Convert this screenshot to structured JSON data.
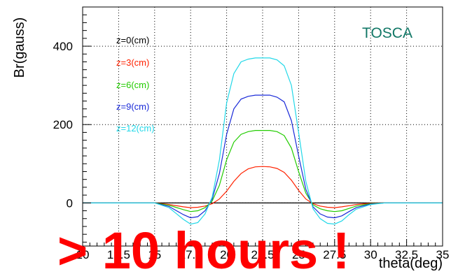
{
  "chart_data": {
    "type": "line",
    "title": "",
    "xlabel": "theta(deg)",
    "ylabel": "Br(gauss)",
    "xlim": [
      10,
      35
    ],
    "ylim": [
      -110,
      500
    ],
    "grid": true,
    "x_ticks": [
      10,
      12.5,
      15,
      17.5,
      20,
      22.5,
      25,
      27.5,
      30,
      32.5,
      35
    ],
    "x_tick_labels": [
      "10",
      "12.5",
      "15",
      "17.5",
      "20",
      "22.5",
      "25",
      "27.5",
      "30",
      "32.5",
      "35"
    ],
    "y_ticks": [
      0,
      200,
      400
    ],
    "y_tick_labels": [
      "0",
      "200",
      "400"
    ],
    "annotation": "TOSCA",
    "annotation_color": "#117766",
    "overlay_text": "> 10 hours !",
    "overlay_color": "#ff0000",
    "legend_position": "upper-left",
    "series": [
      {
        "name": "z=0(cm)",
        "color": "#000000",
        "x": [
          10,
          15,
          35
        ],
        "y": [
          0,
          0,
          0
        ]
      },
      {
        "name": "z=3(cm)",
        "color": "#ff2200",
        "x": [
          10,
          15,
          16,
          17,
          17.5,
          18,
          18.5,
          19,
          19.5,
          20,
          20.5,
          21,
          21.5,
          22,
          22.5,
          23,
          23.5,
          24,
          24.5,
          25,
          25.5,
          26,
          26.5,
          27,
          27.5,
          28,
          28.5,
          29,
          30,
          31,
          35
        ],
        "y": [
          0,
          0,
          -4,
          -10,
          -12,
          -11,
          -8,
          -2,
          10,
          30,
          55,
          75,
          87,
          92,
          93,
          92,
          88,
          78,
          58,
          32,
          10,
          -2,
          -8,
          -11,
          -12,
          -10,
          -7,
          -4,
          -1,
          0,
          0
        ]
      },
      {
        "name": "z=6(cm)",
        "color": "#22cc00",
        "x": [
          10,
          15,
          16,
          17,
          17.5,
          18,
          18.5,
          19,
          19.5,
          20,
          20.5,
          21,
          21.5,
          22,
          22.5,
          23,
          23.5,
          24,
          24.5,
          25,
          25.5,
          26,
          26.5,
          27,
          27.5,
          28,
          28.5,
          29,
          30,
          31,
          35
        ],
        "y": [
          0,
          0,
          -6,
          -17,
          -22,
          -20,
          -12,
          5,
          45,
          110,
          155,
          175,
          182,
          185,
          185,
          185,
          182,
          172,
          140,
          80,
          25,
          -5,
          -15,
          -20,
          -22,
          -20,
          -14,
          -8,
          -2,
          0,
          0
        ]
      },
      {
        "name": "z=9(cm)",
        "color": "#1a2ad8",
        "x": [
          10,
          15,
          16,
          17,
          17.5,
          18,
          18.5,
          19,
          19.5,
          20,
          20.5,
          21,
          21.5,
          22,
          22.5,
          23,
          23.5,
          24,
          24.5,
          25,
          25.5,
          26,
          26.5,
          27,
          27.5,
          28,
          28.5,
          29,
          30,
          31,
          35
        ],
        "y": [
          0,
          0,
          -9,
          -30,
          -38,
          -35,
          -20,
          10,
          75,
          175,
          240,
          265,
          272,
          275,
          275,
          275,
          270,
          258,
          210,
          120,
          35,
          -10,
          -28,
          -36,
          -38,
          -33,
          -22,
          -12,
          -3,
          0,
          0
        ]
      },
      {
        "name": "z=12(cm)",
        "color": "#22d8e8",
        "x": [
          10,
          15,
          16,
          17,
          17.5,
          18,
          18.5,
          19,
          19.5,
          20,
          20.5,
          21,
          21.5,
          22,
          22.5,
          23,
          23.5,
          24,
          24.5,
          25,
          25.5,
          26,
          26.5,
          27,
          27.5,
          28,
          28.5,
          29,
          30,
          31,
          35
        ],
        "y": [
          0,
          0,
          -12,
          -42,
          -54,
          -50,
          -28,
          15,
          110,
          255,
          330,
          360,
          367,
          370,
          370,
          370,
          365,
          350,
          300,
          180,
          55,
          -15,
          -40,
          -52,
          -54,
          -46,
          -30,
          -16,
          -4,
          0,
          0
        ]
      }
    ]
  }
}
